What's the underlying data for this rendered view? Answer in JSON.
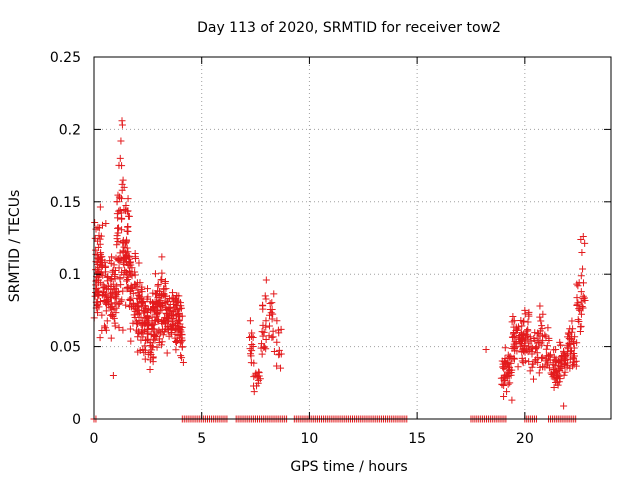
{
  "chart_data": {
    "type": "scatter",
    "title": "Day 113 of 2020, SRMTID for receiver tow2",
    "xlabel": "GPS time / hours",
    "ylabel": "SRMTID / TECUs",
    "xlim": [
      0,
      24
    ],
    "ylim": [
      0,
      0.25
    ],
    "xticks": [
      0,
      5,
      10,
      15,
      20
    ],
    "xtick_labels": [
      "0",
      "5",
      "10",
      "15",
      "20"
    ],
    "yticks": [
      0,
      0.05,
      0.1,
      0.15,
      0.2,
      0.25
    ],
    "ytick_labels": [
      "0",
      "0.05",
      "0.1",
      "0.15",
      "0.2",
      "0.25"
    ],
    "grid": true,
    "marker": "+",
    "colors": {
      "points": "#e31a1c",
      "grid": "#a0a0a0",
      "axis": "#000000"
    },
    "clusters": [
      {
        "name": "cluster-0-4h",
        "x_range": [
          0.0,
          4.1
        ],
        "n": 620,
        "seed": 11
      },
      {
        "name": "cluster-7-9h",
        "x_range": [
          7.2,
          8.7
        ],
        "n": 70,
        "seed": 23
      },
      {
        "name": "cluster-19-23h",
        "x_range": [
          18.9,
          22.8
        ],
        "n": 330,
        "seed": 37
      }
    ],
    "y_envelope": [
      [
        0.0,
        0.095,
        0.025
      ],
      [
        0.3,
        0.1,
        0.025
      ],
      [
        0.6,
        0.085,
        0.02
      ],
      [
        0.9,
        0.085,
        0.02
      ],
      [
        1.2,
        0.12,
        0.04
      ],
      [
        1.5,
        0.11,
        0.03
      ],
      [
        1.8,
        0.09,
        0.025
      ],
      [
        2.1,
        0.075,
        0.02
      ],
      [
        2.4,
        0.065,
        0.015
      ],
      [
        2.7,
        0.06,
        0.018
      ],
      [
        3.0,
        0.075,
        0.02
      ],
      [
        3.3,
        0.075,
        0.018
      ],
      [
        3.6,
        0.07,
        0.015
      ],
      [
        3.9,
        0.068,
        0.015
      ],
      [
        4.1,
        0.06,
        0.015
      ],
      [
        7.2,
        0.055,
        0.012
      ],
      [
        7.6,
        0.03,
        0.01
      ],
      [
        7.9,
        0.06,
        0.02
      ],
      [
        8.2,
        0.07,
        0.015
      ],
      [
        8.5,
        0.055,
        0.015
      ],
      [
        8.7,
        0.045,
        0.012
      ],
      [
        18.9,
        0.03,
        0.01
      ],
      [
        19.2,
        0.035,
        0.012
      ],
      [
        19.6,
        0.05,
        0.015
      ],
      [
        20.0,
        0.055,
        0.015
      ],
      [
        20.4,
        0.045,
        0.012
      ],
      [
        20.7,
        0.05,
        0.015
      ],
      [
        21.0,
        0.045,
        0.01
      ],
      [
        21.4,
        0.035,
        0.01
      ],
      [
        21.8,
        0.04,
        0.01
      ],
      [
        22.2,
        0.05,
        0.012
      ],
      [
        22.6,
        0.08,
        0.02
      ],
      [
        22.8,
        0.1,
        0.02
      ]
    ],
    "isolated_points": [
      {
        "x": 1.3,
        "y": 0.206
      },
      {
        "x": 1.32,
        "y": 0.203
      },
      {
        "x": 1.25,
        "y": 0.192
      },
      {
        "x": 1.22,
        "y": 0.18
      },
      {
        "x": 1.28,
        "y": 0.175
      },
      {
        "x": 1.35,
        "y": 0.165
      },
      {
        "x": 1.4,
        "y": 0.16
      },
      {
        "x": 1.6,
        "y": 0.14
      },
      {
        "x": 0.25,
        "y": 0.132
      },
      {
        "x": 0.55,
        "y": 0.135
      },
      {
        "x": 0.9,
        "y": 0.03
      },
      {
        "x": 3.15,
        "y": 0.112
      },
      {
        "x": 4.15,
        "y": 0.039
      },
      {
        "x": 8.0,
        "y": 0.096
      },
      {
        "x": 7.95,
        "y": 0.085
      },
      {
        "x": 18.2,
        "y": 0.048
      },
      {
        "x": 22.6,
        "y": 0.124
      },
      {
        "x": 22.65,
        "y": 0.115
      },
      {
        "x": 21.8,
        "y": 0.009
      },
      {
        "x": 19.4,
        "y": 0.013
      },
      {
        "x": 20.7,
        "y": 0.078
      },
      {
        "x": 20.0,
        "y": 0.075
      }
    ],
    "zero_segments": [
      [
        0.0,
        0.15
      ],
      [
        4.1,
        6.2
      ],
      [
        6.6,
        9.0
      ],
      [
        9.3,
        14.6
      ],
      [
        17.5,
        19.2
      ],
      [
        20.0,
        20.6
      ],
      [
        21.1,
        22.4
      ]
    ]
  }
}
